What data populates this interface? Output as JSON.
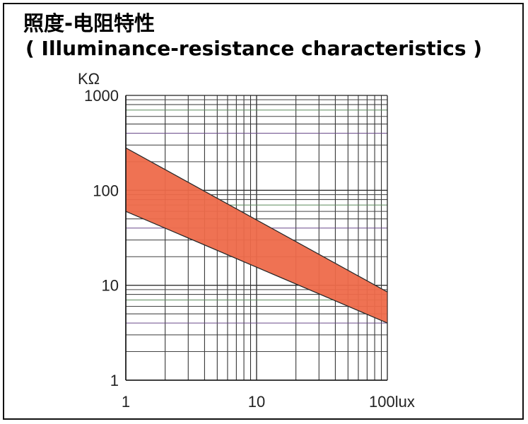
{
  "header": {
    "title_cn": "照度-电阻特性",
    "title_en": "( Illuminance-resistance characteristics )"
  },
  "chart_data": {
    "type": "area",
    "title": "照度-电阻特性 ( Illuminance-resistance characteristics )",
    "xlabel": "lux",
    "ylabel": "KΩ",
    "x_scale": "log",
    "y_scale": "log",
    "xlim": [
      1,
      100
    ],
    "ylim": [
      1,
      1000
    ],
    "x_ticks": [
      {
        "value": 1,
        "label": "1"
      },
      {
        "value": 10,
        "label": "10"
      },
      {
        "value": 100,
        "label": "100lux"
      }
    ],
    "y_ticks": [
      {
        "value": 1,
        "label": "1"
      },
      {
        "value": 10,
        "label": "10"
      },
      {
        "value": 100,
        "label": "100"
      },
      {
        "value": 1000,
        "label": "1000"
      }
    ],
    "y_unit_label": "KΩ",
    "grid": true,
    "band": {
      "color": "#ee6a4a",
      "upper": [
        {
          "x": 1,
          "y": 280
        },
        {
          "x": 100,
          "y": 8.5
        }
      ],
      "lower": [
        {
          "x": 1,
          "y": 60
        },
        {
          "x": 100,
          "y": 4
        }
      ]
    }
  }
}
